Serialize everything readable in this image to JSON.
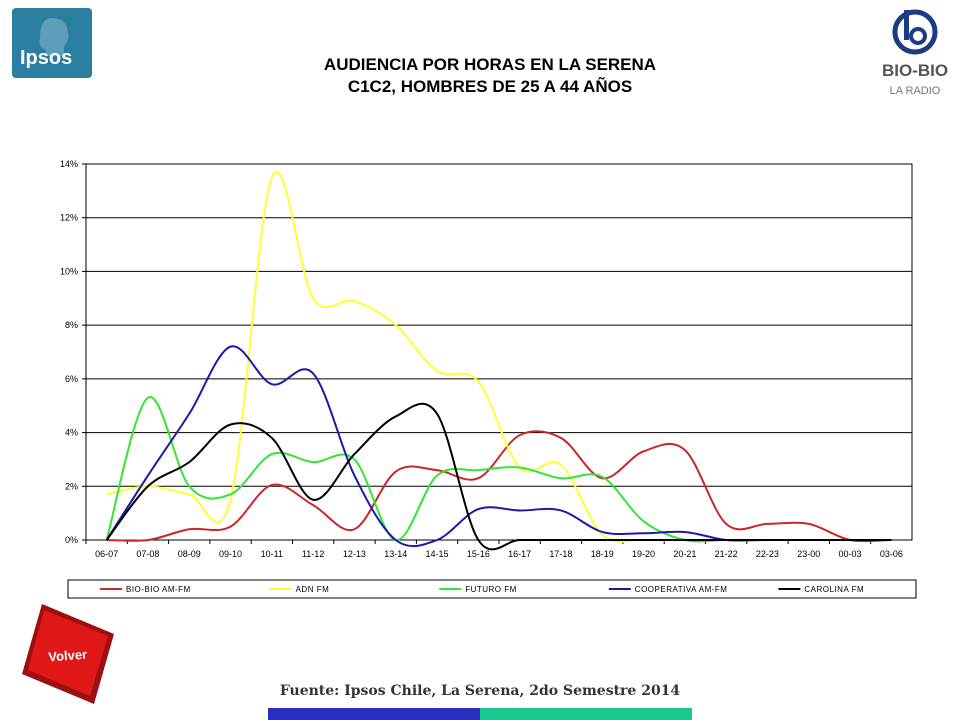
{
  "header": {
    "title_line1": "AUDIENCIA POR HORAS EN LA SERENA",
    "title_line2": "C1C2, HOMBRES DE 25 A 44 AÑOS"
  },
  "logos": {
    "left": "Ipsos",
    "right_top": "BIO-BIO",
    "right_bottom": "LA RADIO"
  },
  "buttons": {
    "back": "Volver"
  },
  "footer": {
    "source": "Fuente: Ipsos Chile, La Serena, 2do Semestre 2014"
  },
  "colors": {
    "bio_bio": "#c8282a",
    "adn": "#ffff33",
    "futuro": "#33e633",
    "cooperativa": "#1a1aa8",
    "carolina": "#000000",
    "grid": "#000000",
    "footer_blue": "#2a2fc2",
    "footer_green": "#19c98f"
  },
  "chart_data": {
    "type": "line",
    "categories": [
      "06-07",
      "07-08",
      "08-09",
      "09-10",
      "10-11",
      "11-12",
      "12-13",
      "13-14",
      "14-15",
      "15-16",
      "16-17",
      "17-18",
      "18-19",
      "19-20",
      "20-21",
      "21-22",
      "22-23",
      "23-00",
      "00-03",
      "03-06"
    ],
    "y_ticks": [
      "0%",
      "2%",
      "4%",
      "6%",
      "8%",
      "10%",
      "12%",
      "14%"
    ],
    "ylim": [
      0,
      14
    ],
    "y_unit": "%",
    "grid": true,
    "legend_position": "bottom",
    "series": [
      {
        "name": "BIO-BIO AM-FM",
        "color": "#c8282a",
        "values": [
          0,
          0,
          0.4,
          0.5,
          2.05,
          1.3,
          0.4,
          2.55,
          2.6,
          2.3,
          3.9,
          3.8,
          2.3,
          3.3,
          3.35,
          0.6,
          0.6,
          0.6,
          0,
          0
        ]
      },
      {
        "name": "ADN FM",
        "color": "#ffff33",
        "values": [
          1.7,
          2.0,
          1.7,
          1.5,
          13.5,
          9.0,
          8.9,
          8.0,
          6.3,
          5.9,
          2.7,
          2.8,
          0.2,
          0,
          0,
          0,
          0,
          0,
          0,
          0
        ]
      },
      {
        "name": "FUTURO FM",
        "color": "#33e633",
        "values": [
          0,
          5.3,
          2.0,
          1.7,
          3.2,
          2.9,
          3.0,
          0,
          2.4,
          2.6,
          2.7,
          2.3,
          2.35,
          0.7,
          0,
          0,
          0,
          0,
          0,
          0
        ]
      },
      {
        "name": "COOPERATIVA AM-FM",
        "color": "#1a1aa8",
        "values": [
          0,
          2.4,
          4.7,
          7.2,
          5.8,
          6.2,
          2.4,
          0,
          0,
          1.15,
          1.1,
          1.1,
          0.3,
          0.25,
          0.3,
          0,
          0,
          0,
          0,
          0
        ]
      },
      {
        "name": "CAROLINA FM",
        "color": "#000000",
        "values": [
          0,
          2.0,
          2.9,
          4.3,
          3.8,
          1.5,
          3.2,
          4.6,
          4.7,
          0,
          0,
          0,
          0,
          0,
          0,
          0,
          0,
          0,
          0,
          0
        ]
      }
    ]
  }
}
